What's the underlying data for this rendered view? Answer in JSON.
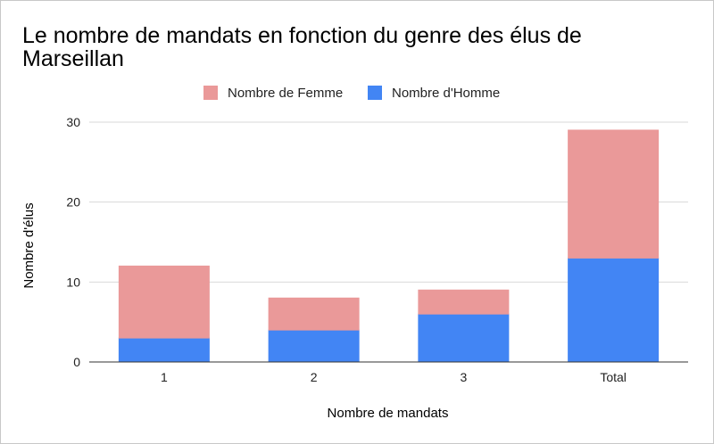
{
  "chart_data": {
    "type": "bar",
    "stacked": true,
    "title": "Le nombre de mandats en fonction du genre des élus de Marseillan",
    "xlabel": "Nombre de mandats",
    "ylabel": "Nombre d'élus",
    "categories": [
      "1",
      "2",
      "3",
      "Total"
    ],
    "series": [
      {
        "name": "Nombre d'Homme",
        "values": [
          3,
          4,
          6,
          13
        ],
        "color": "#4285f4"
      },
      {
        "name": "Nombre de Femme",
        "values": [
          9,
          4,
          3,
          16
        ],
        "color": "#ea9999"
      }
    ],
    "legend_order": [
      1,
      0
    ],
    "ylim": [
      0,
      30
    ],
    "yticks": [
      0,
      10,
      20,
      30
    ],
    "grid": true,
    "legend_position": "top"
  }
}
